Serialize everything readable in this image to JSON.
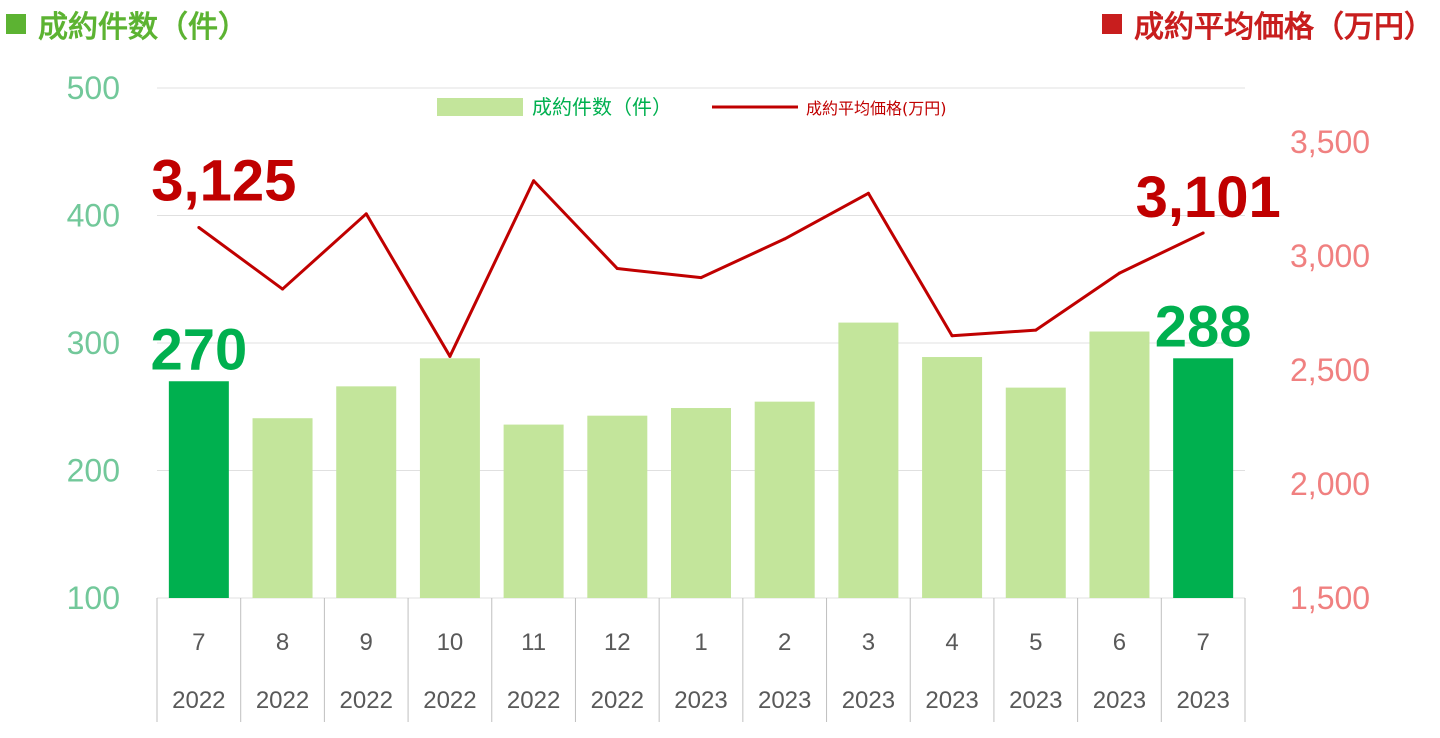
{
  "titles": {
    "left": "成約件数（件）",
    "right": "成約平均価格（万円）"
  },
  "colors": {
    "bar_light": "#c3e59b",
    "bar_highlight": "#00b04f",
    "line": "#c00000",
    "left_axis_text": "#72c89a",
    "right_axis_text": "#f08080",
    "count_label": "#00b04f",
    "price_label": "#c00000",
    "grid": "#e0e0e0",
    "table_line": "#bfbfbf",
    "category_text": "#595959",
    "legend_count_text": "#00b04f",
    "legend_price_text": "#c00000"
  },
  "chart_data": {
    "type": "bar",
    "categories": [
      [
        "7",
        "2022"
      ],
      [
        "8",
        "2022"
      ],
      [
        "9",
        "2022"
      ],
      [
        "10",
        "2022"
      ],
      [
        "11",
        "2022"
      ],
      [
        "12",
        "2022"
      ],
      [
        "1",
        "2023"
      ],
      [
        "2",
        "2023"
      ],
      [
        "3",
        "2023"
      ],
      [
        "4",
        "2023"
      ],
      [
        "5",
        "2023"
      ],
      [
        "6",
        "2023"
      ],
      [
        "7",
        "2023"
      ]
    ],
    "series": [
      {
        "name": "成約件数（件）",
        "type": "bar",
        "axis": "left",
        "values": [
          270,
          241,
          266,
          288,
          236,
          243,
          249,
          254,
          316,
          289,
          265,
          309,
          288
        ],
        "highlight": [
          0,
          12
        ]
      },
      {
        "name": "成約平均価格(万円)",
        "type": "line",
        "axis": "right",
        "values": [
          3125,
          2855,
          3185,
          2560,
          3330,
          2945,
          2905,
          3075,
          3275,
          2650,
          2675,
          2925,
          3101
        ]
      }
    ],
    "left_axis": {
      "ticks": [
        "100",
        "200",
        "300",
        "400",
        "500"
      ],
      "ylim": [
        100,
        500
      ]
    },
    "right_axis": {
      "ticks": [
        "1,500",
        "2,000",
        "2,500",
        "3,000",
        "3,500"
      ],
      "ylim": [
        1500,
        3700
      ]
    },
    "data_labels": [
      {
        "series": 0,
        "index": 0,
        "text": "270"
      },
      {
        "series": 0,
        "index": 12,
        "text": "288"
      },
      {
        "series": 1,
        "index": 0,
        "text": "3,125"
      },
      {
        "series": 1,
        "index": 12,
        "text": "3,101"
      }
    ],
    "legend": {
      "position": "top-center"
    },
    "grid": true
  }
}
